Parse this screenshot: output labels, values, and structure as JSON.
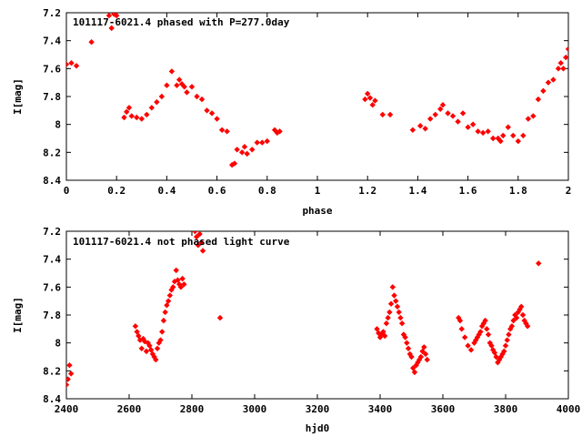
{
  "chart_data": [
    {
      "type": "scatter",
      "title": "101117-6021.4 phased with P=277.0day",
      "xlabel": "phase",
      "ylabel": "I[mag]",
      "xlim": [
        0,
        2
      ],
      "ylim": [
        8.4,
        7.2
      ],
      "y_inverted": true,
      "x_ticks": [
        "0",
        "0.2",
        "0.4",
        "0.6",
        "0.8",
        "1",
        "1.2",
        "1.4",
        "1.6",
        "1.8",
        "2"
      ],
      "y_ticks": [
        "7.2",
        "7.4",
        "7.6",
        "7.8",
        "8",
        "8.2",
        "8.4"
      ],
      "marker_color": "#ff0000",
      "x": [
        0.0,
        0.02,
        0.04,
        0.1,
        0.17,
        0.18,
        0.19,
        0.2,
        0.23,
        0.24,
        0.25,
        0.26,
        0.28,
        0.3,
        0.32,
        0.34,
        0.36,
        0.38,
        0.4,
        0.42,
        0.44,
        0.45,
        0.46,
        0.47,
        0.48,
        0.5,
        0.52,
        0.54,
        0.56,
        0.58,
        0.6,
        0.62,
        0.64,
        0.66,
        0.67,
        0.68,
        0.7,
        0.71,
        0.72,
        0.74,
        0.76,
        0.78,
        0.8,
        0.83,
        0.84,
        0.85,
        1.19,
        1.2,
        1.21,
        1.22,
        1.23,
        1.26,
        1.29,
        1.38,
        1.41,
        1.43,
        1.45,
        1.47,
        1.49,
        1.5,
        1.52,
        1.54,
        1.56,
        1.58,
        1.6,
        1.62,
        1.64,
        1.66,
        1.68,
        1.7,
        1.72,
        1.73,
        1.74,
        1.76,
        1.78,
        1.8,
        1.82,
        1.84,
        1.86,
        1.88,
        1.9,
        1.92,
        1.94,
        1.96,
        1.97,
        1.98,
        1.99,
        2.0
      ],
      "y": [
        7.57,
        7.56,
        7.58,
        7.41,
        7.22,
        7.31,
        7.21,
        7.22,
        7.95,
        7.91,
        7.88,
        7.94,
        7.95,
        7.96,
        7.93,
        7.88,
        7.84,
        7.8,
        7.72,
        7.62,
        7.72,
        7.68,
        7.71,
        7.73,
        7.77,
        7.73,
        7.8,
        7.82,
        7.9,
        7.92,
        7.96,
        8.04,
        8.05,
        8.29,
        8.28,
        8.18,
        8.2,
        8.16,
        8.21,
        8.18,
        8.13,
        8.13,
        8.12,
        8.04,
        8.06,
        8.05,
        7.82,
        7.78,
        7.81,
        7.86,
        7.83,
        7.93,
        7.93,
        8.04,
        8.01,
        8.03,
        7.96,
        7.93,
        7.89,
        7.86,
        7.92,
        7.94,
        7.98,
        7.92,
        8.02,
        8.0,
        8.05,
        8.06,
        8.05,
        8.1,
        8.1,
        8.12,
        8.08,
        8.02,
        8.08,
        8.12,
        8.08,
        7.96,
        7.94,
        7.82,
        7.76,
        7.7,
        7.68,
        7.6,
        7.56,
        7.6,
        7.52,
        7.46
      ]
    },
    {
      "type": "scatter",
      "title": "101117-6021.4 not phased light curve",
      "xlabel": "hjd0",
      "ylabel": "I[mag]",
      "xlim": [
        2400,
        4000
      ],
      "ylim": [
        8.4,
        7.2
      ],
      "y_inverted": true,
      "x_ticks": [
        "2400",
        "2600",
        "2800",
        "3000",
        "3200",
        "3400",
        "3600",
        "3800",
        "4000"
      ],
      "y_ticks": [
        "7.2",
        "7.4",
        "7.6",
        "7.8",
        "8",
        "8.2",
        "8.4"
      ],
      "marker_color": "#ff0000",
      "x": [
        2400,
        2405,
        2410,
        2415,
        2620,
        2625,
        2630,
        2635,
        2640,
        2645,
        2650,
        2655,
        2660,
        2665,
        2670,
        2675,
        2680,
        2685,
        2690,
        2695,
        2700,
        2705,
        2710,
        2715,
        2720,
        2725,
        2730,
        2735,
        2740,
        2745,
        2750,
        2755,
        2760,
        2765,
        2770,
        2775,
        2810,
        2815,
        2820,
        2825,
        2830,
        2835,
        2890,
        3390,
        3395,
        3400,
        3405,
        3410,
        3415,
        3420,
        3425,
        3430,
        3435,
        3440,
        3445,
        3450,
        3455,
        3460,
        3465,
        3470,
        3475,
        3480,
        3485,
        3490,
        3495,
        3500,
        3505,
        3510,
        3515,
        3520,
        3525,
        3530,
        3535,
        3540,
        3545,
        3550,
        3650,
        3655,
        3660,
        3670,
        3680,
        3690,
        3700,
        3705,
        3710,
        3715,
        3720,
        3725,
        3730,
        3735,
        3740,
        3745,
        3750,
        3755,
        3760,
        3765,
        3770,
        3775,
        3780,
        3785,
        3790,
        3795,
        3800,
        3805,
        3810,
        3815,
        3820,
        3825,
        3830,
        3835,
        3840,
        3845,
        3850,
        3855,
        3860,
        3865,
        3870,
        3905
      ],
      "y": [
        8.3,
        8.26,
        8.16,
        8.22,
        7.88,
        7.92,
        7.95,
        7.98,
        8.04,
        7.97,
        7.99,
        8.06,
        8.0,
        8.02,
        8.05,
        8.08,
        8.1,
        8.12,
        8.04,
        8.0,
        7.98,
        7.92,
        7.84,
        7.78,
        7.73,
        7.7,
        7.66,
        7.62,
        7.6,
        7.56,
        7.48,
        7.55,
        7.58,
        7.6,
        7.54,
        7.58,
        7.2,
        7.24,
        7.3,
        7.22,
        7.28,
        7.34,
        7.82,
        7.9,
        7.93,
        7.96,
        7.94,
        7.92,
        7.95,
        7.86,
        7.82,
        7.78,
        7.72,
        7.6,
        7.66,
        7.7,
        7.74,
        7.78,
        7.82,
        7.86,
        7.94,
        7.96,
        8.0,
        8.04,
        8.08,
        8.1,
        8.18,
        8.21,
        8.16,
        8.14,
        8.12,
        8.1,
        8.06,
        8.03,
        8.08,
        8.12,
        7.82,
        7.84,
        7.9,
        7.96,
        8.02,
        8.05,
        8.0,
        7.98,
        7.96,
        7.94,
        7.92,
        7.88,
        7.86,
        7.84,
        7.9,
        7.94,
        8.0,
        8.02,
        8.05,
        8.07,
        8.1,
        8.14,
        8.12,
        8.1,
        8.08,
        8.06,
        8.02,
        7.98,
        7.94,
        7.9,
        7.88,
        7.84,
        7.8,
        7.82,
        7.78,
        7.76,
        7.74,
        7.8,
        7.84,
        7.86,
        7.88,
        7.43
      ]
    }
  ]
}
